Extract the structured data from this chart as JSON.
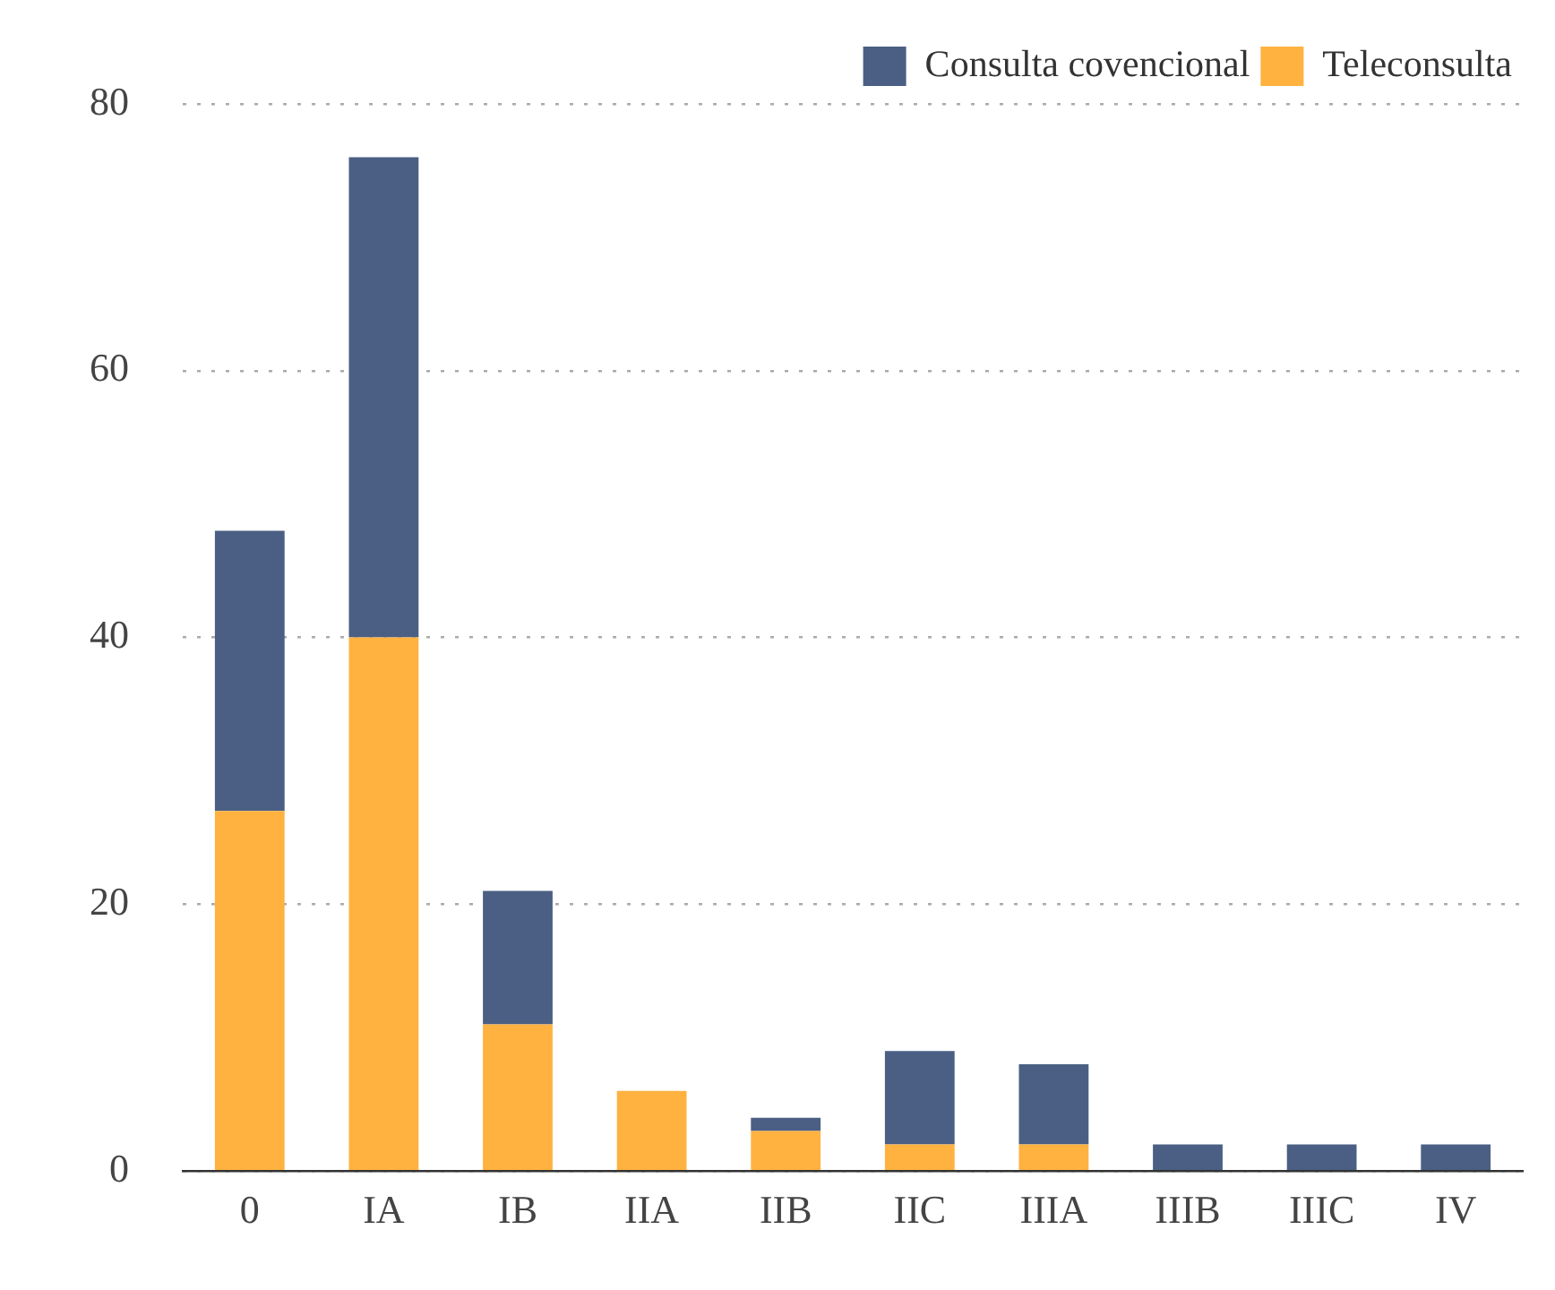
{
  "chart_data": {
    "type": "bar",
    "stacked": true,
    "categories": [
      "0",
      "IA",
      "IB",
      "IIA",
      "IIB",
      "IIC",
      "IIIA",
      "IIIB",
      "IIIC",
      "IV"
    ],
    "series": [
      {
        "name": "Teleconsulta",
        "color": "#ffb240",
        "values": [
          27,
          40,
          11,
          6,
          3,
          2,
          2,
          0,
          0,
          0
        ]
      },
      {
        "name": "Consulta covencional",
        "color": "#4a5f83",
        "values": [
          21,
          36,
          10,
          0,
          1,
          7,
          6,
          2,
          2,
          2
        ]
      }
    ],
    "ylim": [
      0,
      80
    ],
    "yticks": [
      0,
      20,
      40,
      60,
      80
    ],
    "grid": "y",
    "legend": "top right"
  }
}
